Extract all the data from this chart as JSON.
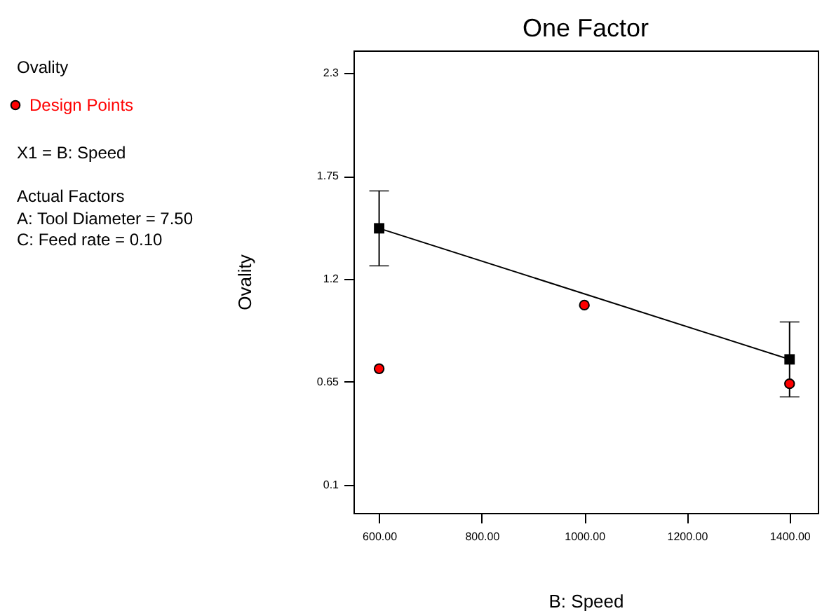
{
  "chart_data": {
    "type": "line",
    "title": "One Factor",
    "xlabel": "B: Speed",
    "ylabel": "Ovality",
    "annotations": [
      "Ovality",
      "X1 = B: Speed",
      "Actual Factors",
      "A: Tool Diameter = 7.50",
      "C: Feed rate = 0.10"
    ],
    "series": [
      {
        "type": "line",
        "color": "#000000",
        "marker": "square",
        "x": [
          600,
          1400
        ],
        "values": [
          1.47,
          0.77
        ],
        "errors": [
          0.2,
          0.2
        ]
      },
      {
        "type": "scatter",
        "name": "Design Points",
        "color": "#ff0000",
        "marker": "circle",
        "x": [
          600,
          1000,
          1400
        ],
        "values": [
          0.72,
          1.06,
          0.64
        ]
      }
    ],
    "xlim": [
      550,
      1455
    ],
    "ylim": [
      -0.05,
      2.42
    ],
    "xticks": [
      {
        "value": 600,
        "label": "600.00"
      },
      {
        "value": 800,
        "label": "800.00"
      },
      {
        "value": 1000,
        "label": "1000.00"
      },
      {
        "value": 1200,
        "label": "1200.00"
      },
      {
        "value": 1400,
        "label": "1400.00"
      }
    ],
    "yticks": [
      0.1,
      0.65,
      1.2,
      1.75,
      2.3
    ],
    "legend": "left",
    "grid": false
  }
}
